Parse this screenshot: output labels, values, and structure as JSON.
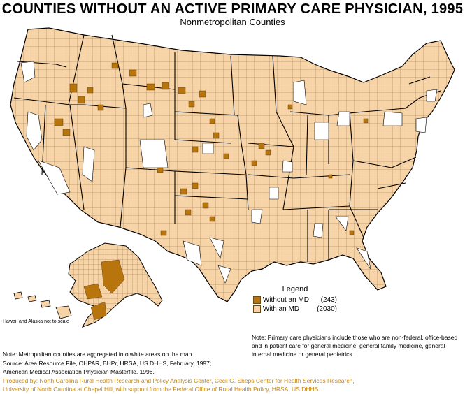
{
  "title": "COUNTIES WITHOUT AN ACTIVE PRIMARY CARE PHYSICIAN, 1995",
  "subtitle": "Nonmetropolitan Counties",
  "colors": {
    "without_md": "#b8740d",
    "with_md": "#f7d3a8",
    "metro": "#ffffff",
    "border": "#000000",
    "credit_text": "#c8860f"
  },
  "legend": {
    "title": "Legend",
    "items": [
      {
        "label": "Without  an  MD",
        "count": "(243)",
        "color": "#b8740d"
      },
      {
        "label": "With an  MD",
        "count": "(2030)",
        "color": "#f7d3a8"
      }
    ]
  },
  "hawaii_note": "Hawaii and Alaska not to scale",
  "side_note": "Note: Primary care physicians include those who are non-federal, office-based and in patient care for general medicine, general family medicine, general internal medicine or general pediatrics.",
  "notes": {
    "line1": "Note: Metropolitan counties are aggregated into white areas on the map.",
    "line2": "Source: Area Resource File, OHPAR, BHPr, HRSA, US DHHS, February, 1997;",
    "line3": "American Medical Association Physician Masterfile, 1996.",
    "line4": "Produced by: North Carolina Rural Health Research and Policy Analysis Center, Cecil G. Sheps Center for Health Services Research,",
    "line5": "University of North Carolina at Chapel Hill, with support from the Federal Office of Rural Health Policy, HRSA, US DHHS."
  }
}
